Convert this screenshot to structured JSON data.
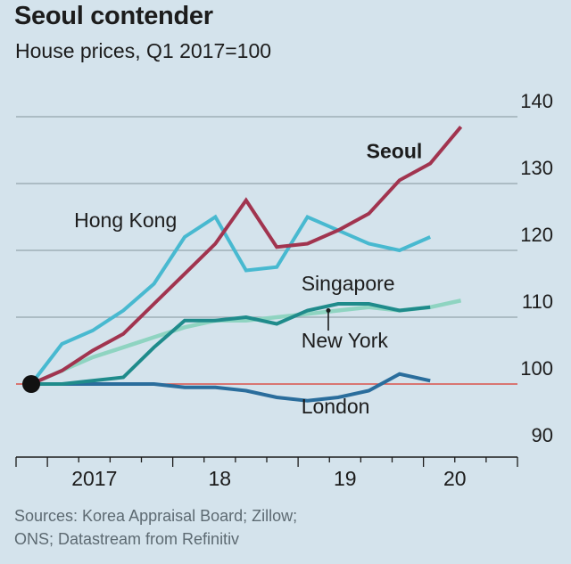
{
  "chart_data": {
    "type": "line",
    "title": "Seoul contender",
    "subtitle": "House prices, Q1 2017=100",
    "ylim": [
      90,
      140
    ],
    "yticks": [
      90,
      100,
      110,
      120,
      130,
      140
    ],
    "baseline": 100,
    "x_range": [
      2016.75,
      2020.75
    ],
    "x_ticks": [
      2017,
      2018,
      2019,
      2020,
      2020.75
    ],
    "x_tick_labels": [
      {
        "x": 2017.375,
        "label": "2017"
      },
      {
        "x": 2018.375,
        "label": "18"
      },
      {
        "x": 2019.375,
        "label": "19"
      },
      {
        "x": 2020.25,
        "label": "20"
      }
    ],
    "series": [
      {
        "name": "Hong Kong",
        "color": "#48b9d0",
        "x": [
          2017.0,
          2017.25,
          2017.5,
          2017.75,
          2018.0,
          2018.25,
          2018.5,
          2018.75,
          2019.0,
          2019.25,
          2019.5,
          2019.75,
          2020.0,
          2020.25
        ],
        "values": [
          100,
          106,
          108,
          111,
          115,
          122,
          125,
          117,
          117.5,
          125,
          123,
          121,
          120,
          122
        ]
      },
      {
        "name": "Seoul",
        "color": "#a1344f",
        "x": [
          2017.0,
          2017.25,
          2017.5,
          2017.75,
          2018.0,
          2018.25,
          2018.5,
          2018.75,
          2019.0,
          2019.25,
          2019.5,
          2019.75,
          2020.0,
          2020.25,
          2020.5
        ],
        "values": [
          100,
          102,
          105,
          107.5,
          112,
          116.5,
          121,
          127.5,
          120.5,
          121,
          123,
          125.5,
          130.5,
          133,
          138.5
        ]
      },
      {
        "name": "Singapore",
        "color": "#8fd4c1",
        "x": [
          2017.0,
          2017.25,
          2017.5,
          2017.75,
          2018.0,
          2018.25,
          2018.5,
          2018.75,
          2019.0,
          2019.25,
          2019.5,
          2019.75,
          2020.0,
          2020.25,
          2020.5
        ],
        "values": [
          100,
          102,
          104,
          105.5,
          107,
          108.5,
          109.5,
          109.5,
          110,
          110.5,
          111,
          111.5,
          111,
          111.5,
          112.5
        ]
      },
      {
        "name": "New York",
        "color": "#1f8b8b",
        "x": [
          2017.0,
          2017.25,
          2017.5,
          2017.75,
          2018.0,
          2018.25,
          2018.5,
          2018.75,
          2019.0,
          2019.25,
          2019.5,
          2019.75,
          2020.0,
          2020.25
        ],
        "values": [
          100,
          100,
          100.5,
          101,
          105.5,
          109.5,
          109.5,
          110,
          109,
          111,
          112,
          112,
          111,
          111.5
        ]
      },
      {
        "name": "London",
        "color": "#2a6d9c",
        "x": [
          2017.0,
          2017.25,
          2017.5,
          2017.75,
          2018.0,
          2018.25,
          2018.5,
          2018.75,
          2019.0,
          2019.25,
          2019.5,
          2019.75,
          2020.0,
          2020.25
        ],
        "values": [
          100,
          100,
          100,
          100,
          100,
          99.5,
          99.5,
          99,
          98,
          97.5,
          98,
          99,
          101.5,
          100.5
        ]
      }
    ],
    "labels": [
      {
        "text": "Hong Kong",
        "x": 2017.35,
        "y": 123.5,
        "bold": false
      },
      {
        "text": "Seoul",
        "x": 2019.73,
        "y": 133.8,
        "bold": true
      },
      {
        "text": "Singapore",
        "x": 2019.2,
        "y": 114,
        "bold": false
      },
      {
        "text": "New York",
        "x": 2019.2,
        "y": 105.5,
        "bold": false
      },
      {
        "text": "London",
        "x": 2019.2,
        "y": 95.6,
        "bold": false
      }
    ],
    "annotation": {
      "label": "New York",
      "x": 2019.42,
      "y_from": 111,
      "y_to": 108
    }
  },
  "sources": [
    "Sources: Korea Appraisal Board; Zillow;",
    "ONS; Datastream from Refinitiv"
  ]
}
